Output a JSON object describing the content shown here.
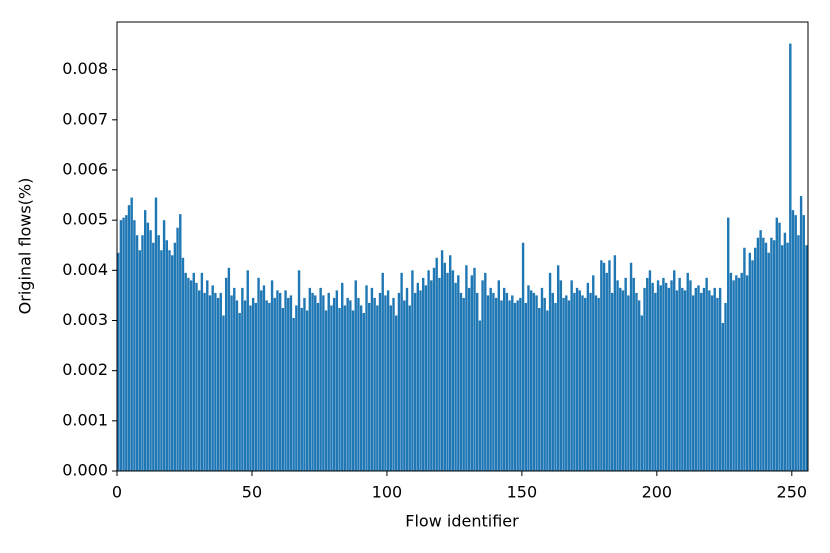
{
  "chart_data": {
    "type": "histogram",
    "xlabel": "Flow identifier",
    "ylabel": "Original flows(%)",
    "color": "#1f77b4",
    "bins": [
      0,
      1,
      2,
      3,
      4,
      5,
      6,
      7,
      8,
      9,
      10,
      11,
      12,
      13,
      14,
      15,
      16,
      17,
      18,
      19,
      20,
      21,
      22,
      23,
      24,
      25,
      26,
      27,
      28,
      29,
      30,
      31,
      32,
      33,
      34,
      35,
      36,
      37,
      38,
      39,
      40,
      41,
      42,
      43,
      44,
      45,
      46,
      47,
      48,
      49,
      50,
      51,
      52,
      53,
      54,
      55,
      56,
      57,
      58,
      59,
      60,
      61,
      62,
      63,
      64,
      65,
      66,
      67,
      68,
      69,
      70,
      71,
      72,
      73,
      74,
      75,
      76,
      77,
      78,
      79,
      80,
      81,
      82,
      83,
      84,
      85,
      86,
      87,
      88,
      89,
      90,
      91,
      92,
      93,
      94,
      95,
      96,
      97,
      98,
      99,
      100,
      101,
      102,
      103,
      104,
      105,
      106,
      107,
      108,
      109,
      110,
      111,
      112,
      113,
      114,
      115,
      116,
      117,
      118,
      119,
      120,
      121,
      122,
      123,
      124,
      125,
      126,
      127,
      128,
      129,
      130,
      131,
      132,
      133,
      134,
      135,
      136,
      137,
      138,
      139,
      140,
      141,
      142,
      143,
      144,
      145,
      146,
      147,
      148,
      149,
      150,
      151,
      152,
      153,
      154,
      155,
      156,
      157,
      158,
      159,
      160,
      161,
      162,
      163,
      164,
      165,
      166,
      167,
      168,
      169,
      170,
      171,
      172,
      173,
      174,
      175,
      176,
      177,
      178,
      179,
      180,
      181,
      182,
      183,
      184,
      185,
      186,
      187,
      188,
      189,
      190,
      191,
      192,
      193,
      194,
      195,
      196,
      197,
      198,
      199,
      200,
      201,
      202,
      203,
      204,
      205,
      206,
      207,
      208,
      209,
      210,
      211,
      212,
      213,
      214,
      215,
      216,
      217,
      218,
      219,
      220,
      221,
      222,
      223,
      224,
      225,
      226,
      227,
      228,
      229,
      230,
      231,
      232,
      233,
      234,
      235,
      236,
      237,
      238,
      239,
      240,
      241,
      242,
      243,
      244,
      245,
      246,
      247,
      248,
      249,
      250,
      251,
      252,
      253,
      254,
      255,
      256
    ],
    "values": [
      0.00435,
      0.005,
      0.00505,
      0.0051,
      0.0053,
      0.00545,
      0.005,
      0.0047,
      0.0044,
      0.0047,
      0.0052,
      0.00495,
      0.0048,
      0.00455,
      0.00545,
      0.0047,
      0.0044,
      0.005,
      0.0046,
      0.0044,
      0.0043,
      0.00455,
      0.00485,
      0.00512,
      0.00425,
      0.00395,
      0.00385,
      0.0038,
      0.00395,
      0.00375,
      0.0036,
      0.00395,
      0.00355,
      0.0038,
      0.0035,
      0.0037,
      0.00355,
      0.00345,
      0.00355,
      0.0031,
      0.00385,
      0.00405,
      0.0035,
      0.00365,
      0.0034,
      0.00315,
      0.00365,
      0.0034,
      0.004,
      0.0033,
      0.00345,
      0.00335,
      0.00385,
      0.0036,
      0.0037,
      0.0034,
      0.00335,
      0.0038,
      0.00345,
      0.0036,
      0.00355,
      0.00325,
      0.0036,
      0.00345,
      0.0035,
      0.00305,
      0.0033,
      0.004,
      0.00325,
      0.00345,
      0.0032,
      0.00365,
      0.00355,
      0.0035,
      0.00335,
      0.00365,
      0.0035,
      0.0032,
      0.00355,
      0.0033,
      0.00345,
      0.0036,
      0.00325,
      0.00375,
      0.0033,
      0.00345,
      0.0034,
      0.0032,
      0.0038,
      0.00345,
      0.0033,
      0.00315,
      0.0037,
      0.00335,
      0.00365,
      0.00345,
      0.0033,
      0.00355,
      0.00395,
      0.0035,
      0.0036,
      0.0033,
      0.00345,
      0.0031,
      0.00355,
      0.00395,
      0.0034,
      0.00365,
      0.0033,
      0.004,
      0.00355,
      0.00375,
      0.0036,
      0.00385,
      0.0037,
      0.004,
      0.0038,
      0.00405,
      0.00425,
      0.00385,
      0.0044,
      0.00415,
      0.00395,
      0.0043,
      0.004,
      0.00375,
      0.0039,
      0.00355,
      0.00345,
      0.0041,
      0.00365,
      0.0039,
      0.00405,
      0.00355,
      0.003,
      0.0038,
      0.00395,
      0.0035,
      0.00365,
      0.00355,
      0.00345,
      0.0038,
      0.0034,
      0.00365,
      0.00355,
      0.0034,
      0.0035,
      0.00335,
      0.0034,
      0.00345,
      0.00455,
      0.00335,
      0.0037,
      0.0036,
      0.00355,
      0.0035,
      0.00325,
      0.00365,
      0.00345,
      0.0032,
      0.00395,
      0.00355,
      0.00335,
      0.0041,
      0.0038,
      0.00345,
      0.0035,
      0.0034,
      0.0038,
      0.00355,
      0.00365,
      0.0036,
      0.0035,
      0.00345,
      0.00375,
      0.00355,
      0.0039,
      0.0035,
      0.00345,
      0.0042,
      0.00415,
      0.00395,
      0.0042,
      0.00355,
      0.0043,
      0.0038,
      0.00365,
      0.0036,
      0.00385,
      0.0035,
      0.00415,
      0.00385,
      0.00355,
      0.0034,
      0.0031,
      0.00365,
      0.00385,
      0.004,
      0.00375,
      0.00355,
      0.0038,
      0.0037,
      0.00385,
      0.00375,
      0.00365,
      0.0038,
      0.004,
      0.0036,
      0.00385,
      0.00365,
      0.0036,
      0.00395,
      0.0038,
      0.0035,
      0.00365,
      0.0037,
      0.00355,
      0.00365,
      0.00385,
      0.0036,
      0.0035,
      0.00365,
      0.00345,
      0.00365,
      0.00295,
      0.00335,
      0.00505,
      0.00395,
      0.0038,
      0.0039,
      0.00385,
      0.00395,
      0.00445,
      0.0039,
      0.00435,
      0.0042,
      0.00445,
      0.00465,
      0.0048,
      0.00465,
      0.00455,
      0.00435,
      0.00465,
      0.0046,
      0.00505,
      0.00495,
      0.0045,
      0.00475,
      0.00455,
      0.00852,
      0.0052,
      0.0051,
      0.0047,
      0.00548,
      0.0051,
      0.0045
    ],
    "xlim": [
      0,
      256
    ],
    "xticks": [
      0,
      50,
      100,
      150,
      200,
      250
    ],
    "ylim": [
      0,
      0.00895
    ],
    "yticks": [
      {
        "value": 0,
        "label": "0.000"
      },
      0.001,
      0.002,
      0.003,
      0.004,
      0.005,
      0.006,
      0.007,
      0.008
    ]
  }
}
